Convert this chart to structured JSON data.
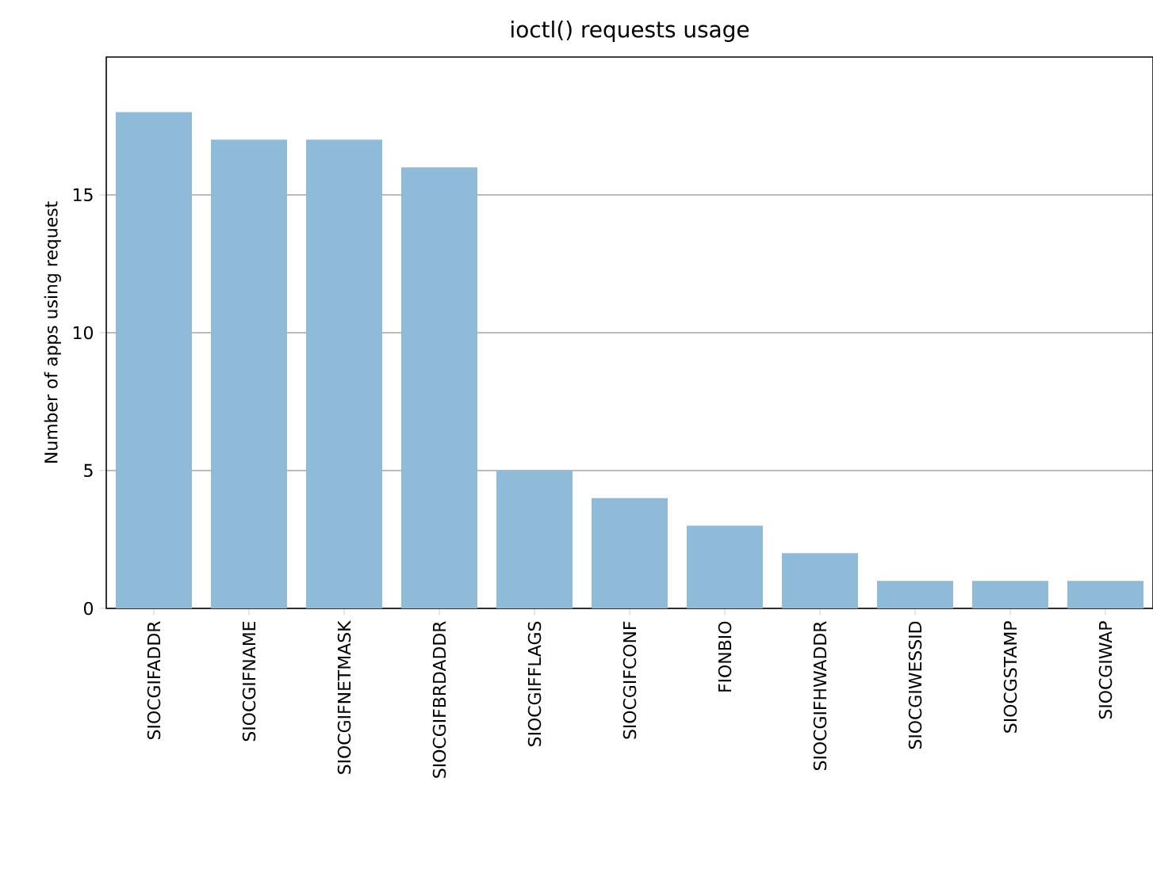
{
  "chart_data": {
    "type": "bar",
    "title": "ioctl() requests usage",
    "ylabel": "Number of apps using request",
    "categories": [
      "SIOCGIFADDR",
      "SIOCGIFNAME",
      "SIOCGIFNETMASK",
      "SIOCGIFBRDADDR",
      "SIOCGIFFLAGS",
      "SIOCGIFCONF",
      "FIONBIO",
      "SIOCGIFHWADDR",
      "SIOCGIWESSID",
      "SIOCGSTAMP",
      "SIOCGIWAP"
    ],
    "values": [
      18,
      17,
      17,
      16,
      5,
      4,
      3,
      2,
      1,
      1,
      1
    ],
    "color": "#8fbbd9",
    "ylim": [
      0,
      20
    ],
    "yticks": [
      0,
      5,
      10,
      15
    ],
    "grid": "y"
  }
}
